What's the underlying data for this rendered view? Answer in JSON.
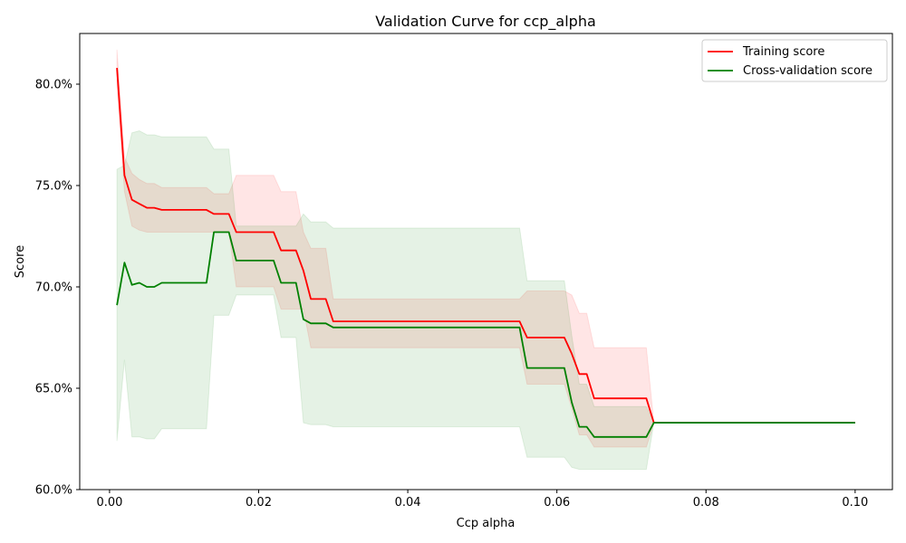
{
  "chart_data": {
    "type": "line",
    "title": "Validation Curve for ccp_alpha",
    "xlabel": "Ccp alpha",
    "ylabel": "Score",
    "xlim": [
      -0.004,
      0.105
    ],
    "ylim": [
      0.6,
      0.825
    ],
    "xticks": [
      0.0,
      0.02,
      0.04,
      0.06,
      0.08,
      0.1
    ],
    "xtick_labels": [
      "0.00",
      "0.02",
      "0.04",
      "0.06",
      "0.08",
      "0.10"
    ],
    "yticks": [
      0.6,
      0.65,
      0.7,
      0.75,
      0.8
    ],
    "ytick_labels": [
      "60.0%",
      "65.0%",
      "70.0%",
      "75.0%",
      "80.0%"
    ],
    "grid": false,
    "legend_position": "top-right",
    "x": [
      0.001,
      0.002,
      0.003,
      0.004,
      0.005,
      0.006,
      0.007,
      0.008,
      0.009,
      0.01,
      0.011,
      0.012,
      0.013,
      0.014,
      0.015,
      0.016,
      0.017,
      0.018,
      0.019,
      0.02,
      0.021,
      0.022,
      0.023,
      0.024,
      0.025,
      0.026,
      0.027,
      0.028,
      0.029,
      0.03,
      0.031,
      0.032,
      0.033,
      0.034,
      0.035,
      0.036,
      0.037,
      0.038,
      0.039,
      0.04,
      0.041,
      0.042,
      0.043,
      0.044,
      0.045,
      0.046,
      0.047,
      0.048,
      0.049,
      0.05,
      0.051,
      0.052,
      0.053,
      0.054,
      0.055,
      0.056,
      0.057,
      0.058,
      0.059,
      0.06,
      0.061,
      0.062,
      0.063,
      0.064,
      0.065,
      0.066,
      0.067,
      0.068,
      0.069,
      0.07,
      0.071,
      0.072,
      0.073,
      0.074,
      0.075,
      0.076,
      0.077,
      0.078,
      0.079,
      0.08,
      0.081,
      0.082,
      0.083,
      0.084,
      0.085,
      0.086,
      0.087,
      0.088,
      0.089,
      0.09,
      0.091,
      0.092,
      0.093,
      0.094,
      0.095,
      0.096,
      0.097,
      0.098,
      0.099,
      0.1
    ],
    "series": [
      {
        "name": "Training score",
        "color": "#ff0000",
        "band_color": "#ff0000",
        "values": [
          0.808,
          0.755,
          0.743,
          0.741,
          0.739,
          0.739,
          0.738,
          0.738,
          0.738,
          0.738,
          0.738,
          0.738,
          0.738,
          0.736,
          0.736,
          0.736,
          0.727,
          0.727,
          0.727,
          0.727,
          0.727,
          0.727,
          0.718,
          0.718,
          0.718,
          0.708,
          0.694,
          0.694,
          0.694,
          0.683,
          0.683,
          0.683,
          0.683,
          0.683,
          0.683,
          0.683,
          0.683,
          0.683,
          0.683,
          0.683,
          0.683,
          0.683,
          0.683,
          0.683,
          0.683,
          0.683,
          0.683,
          0.683,
          0.683,
          0.683,
          0.683,
          0.683,
          0.683,
          0.683,
          0.683,
          0.675,
          0.675,
          0.675,
          0.675,
          0.675,
          0.675,
          0.667,
          0.657,
          0.657,
          0.645,
          0.645,
          0.645,
          0.645,
          0.645,
          0.645,
          0.645,
          0.645,
          0.633,
          0.633,
          0.633,
          0.633,
          0.633,
          0.633,
          0.633,
          0.633,
          0.633,
          0.633,
          0.633,
          0.633,
          0.633,
          0.633,
          0.633,
          0.633,
          0.633,
          0.633,
          0.633,
          0.633,
          0.633,
          0.633,
          0.633,
          0.633,
          0.633,
          0.633,
          0.633,
          0.633
        ],
        "lower": [
          0.799,
          0.747,
          0.73,
          0.728,
          0.727,
          0.727,
          0.727,
          0.727,
          0.727,
          0.727,
          0.727,
          0.727,
          0.727,
          0.727,
          0.727,
          0.727,
          0.7,
          0.7,
          0.7,
          0.7,
          0.7,
          0.7,
          0.689,
          0.689,
          0.689,
          0.689,
          0.67,
          0.67,
          0.67,
          0.67,
          0.67,
          0.67,
          0.67,
          0.67,
          0.67,
          0.67,
          0.67,
          0.67,
          0.67,
          0.67,
          0.67,
          0.67,
          0.67,
          0.67,
          0.67,
          0.67,
          0.67,
          0.67,
          0.67,
          0.67,
          0.67,
          0.67,
          0.67,
          0.67,
          0.67,
          0.652,
          0.652,
          0.652,
          0.652,
          0.652,
          0.652,
          0.64,
          0.627,
          0.627,
          0.621,
          0.621,
          0.621,
          0.621,
          0.621,
          0.621,
          0.621,
          0.621,
          0.633,
          0.633,
          0.633,
          0.633,
          0.633,
          0.633,
          0.633,
          0.633,
          0.633,
          0.633,
          0.633,
          0.633,
          0.633,
          0.633,
          0.633,
          0.633,
          0.633,
          0.633,
          0.633,
          0.633,
          0.633,
          0.633,
          0.633,
          0.633,
          0.633,
          0.633,
          0.633,
          0.633
        ],
        "upper": [
          0.817,
          0.764,
          0.756,
          0.753,
          0.751,
          0.751,
          0.749,
          0.749,
          0.749,
          0.749,
          0.749,
          0.749,
          0.749,
          0.746,
          0.746,
          0.746,
          0.755,
          0.755,
          0.755,
          0.755,
          0.755,
          0.755,
          0.747,
          0.747,
          0.747,
          0.727,
          0.719,
          0.719,
          0.719,
          0.694,
          0.694,
          0.694,
          0.694,
          0.694,
          0.694,
          0.694,
          0.694,
          0.694,
          0.694,
          0.694,
          0.694,
          0.694,
          0.694,
          0.694,
          0.694,
          0.694,
          0.694,
          0.694,
          0.694,
          0.694,
          0.694,
          0.694,
          0.694,
          0.694,
          0.694,
          0.698,
          0.698,
          0.698,
          0.698,
          0.698,
          0.698,
          0.696,
          0.687,
          0.687,
          0.67,
          0.67,
          0.67,
          0.67,
          0.67,
          0.67,
          0.67,
          0.67,
          0.633,
          0.633,
          0.633,
          0.633,
          0.633,
          0.633,
          0.633,
          0.633,
          0.633,
          0.633,
          0.633,
          0.633,
          0.633,
          0.633,
          0.633,
          0.633,
          0.633,
          0.633,
          0.633,
          0.633,
          0.633,
          0.633,
          0.633,
          0.633,
          0.633,
          0.633,
          0.633,
          0.633
        ]
      },
      {
        "name": "Cross-validation score",
        "color": "#008000",
        "band_color": "#008000",
        "values": [
          0.691,
          0.712,
          0.701,
          0.702,
          0.7,
          0.7,
          0.702,
          0.702,
          0.702,
          0.702,
          0.702,
          0.702,
          0.702,
          0.727,
          0.727,
          0.727,
          0.713,
          0.713,
          0.713,
          0.713,
          0.713,
          0.713,
          0.702,
          0.702,
          0.702,
          0.684,
          0.682,
          0.682,
          0.682,
          0.68,
          0.68,
          0.68,
          0.68,
          0.68,
          0.68,
          0.68,
          0.68,
          0.68,
          0.68,
          0.68,
          0.68,
          0.68,
          0.68,
          0.68,
          0.68,
          0.68,
          0.68,
          0.68,
          0.68,
          0.68,
          0.68,
          0.68,
          0.68,
          0.68,
          0.68,
          0.66,
          0.66,
          0.66,
          0.66,
          0.66,
          0.66,
          0.643,
          0.631,
          0.631,
          0.626,
          0.626,
          0.626,
          0.626,
          0.626,
          0.626,
          0.626,
          0.626,
          0.633,
          0.633,
          0.633,
          0.633,
          0.633,
          0.633,
          0.633,
          0.633,
          0.633,
          0.633,
          0.633,
          0.633,
          0.633,
          0.633,
          0.633,
          0.633,
          0.633,
          0.633,
          0.633,
          0.633,
          0.633,
          0.633,
          0.633,
          0.633,
          0.633,
          0.633,
          0.633,
          0.633
        ],
        "lower": [
          0.624,
          0.664,
          0.626,
          0.626,
          0.625,
          0.625,
          0.63,
          0.63,
          0.63,
          0.63,
          0.63,
          0.63,
          0.63,
          0.686,
          0.686,
          0.686,
          0.696,
          0.696,
          0.696,
          0.696,
          0.696,
          0.696,
          0.675,
          0.675,
          0.675,
          0.633,
          0.632,
          0.632,
          0.632,
          0.631,
          0.631,
          0.631,
          0.631,
          0.631,
          0.631,
          0.631,
          0.631,
          0.631,
          0.631,
          0.631,
          0.631,
          0.631,
          0.631,
          0.631,
          0.631,
          0.631,
          0.631,
          0.631,
          0.631,
          0.631,
          0.631,
          0.631,
          0.631,
          0.631,
          0.631,
          0.616,
          0.616,
          0.616,
          0.616,
          0.616,
          0.616,
          0.611,
          0.61,
          0.61,
          0.61,
          0.61,
          0.61,
          0.61,
          0.61,
          0.61,
          0.61,
          0.61,
          0.633,
          0.633,
          0.633,
          0.633,
          0.633,
          0.633,
          0.633,
          0.633,
          0.633,
          0.633,
          0.633,
          0.633,
          0.633,
          0.633,
          0.633,
          0.633,
          0.633,
          0.633,
          0.633,
          0.633,
          0.633,
          0.633,
          0.633,
          0.633,
          0.633,
          0.633,
          0.633,
          0.633
        ],
        "upper": [
          0.758,
          0.76,
          0.776,
          0.777,
          0.775,
          0.775,
          0.774,
          0.774,
          0.774,
          0.774,
          0.774,
          0.774,
          0.774,
          0.768,
          0.768,
          0.768,
          0.73,
          0.73,
          0.73,
          0.73,
          0.73,
          0.73,
          0.73,
          0.73,
          0.73,
          0.736,
          0.732,
          0.732,
          0.732,
          0.729,
          0.729,
          0.729,
          0.729,
          0.729,
          0.729,
          0.729,
          0.729,
          0.729,
          0.729,
          0.729,
          0.729,
          0.729,
          0.729,
          0.729,
          0.729,
          0.729,
          0.729,
          0.729,
          0.729,
          0.729,
          0.729,
          0.729,
          0.729,
          0.729,
          0.729,
          0.703,
          0.703,
          0.703,
          0.703,
          0.703,
          0.703,
          0.676,
          0.652,
          0.652,
          0.641,
          0.641,
          0.641,
          0.641,
          0.641,
          0.641,
          0.641,
          0.641,
          0.633,
          0.633,
          0.633,
          0.633,
          0.633,
          0.633,
          0.633,
          0.633,
          0.633,
          0.633,
          0.633,
          0.633,
          0.633,
          0.633,
          0.633,
          0.633,
          0.633,
          0.633,
          0.633,
          0.633,
          0.633,
          0.633,
          0.633,
          0.633,
          0.633,
          0.633,
          0.633,
          0.633
        ]
      }
    ]
  }
}
